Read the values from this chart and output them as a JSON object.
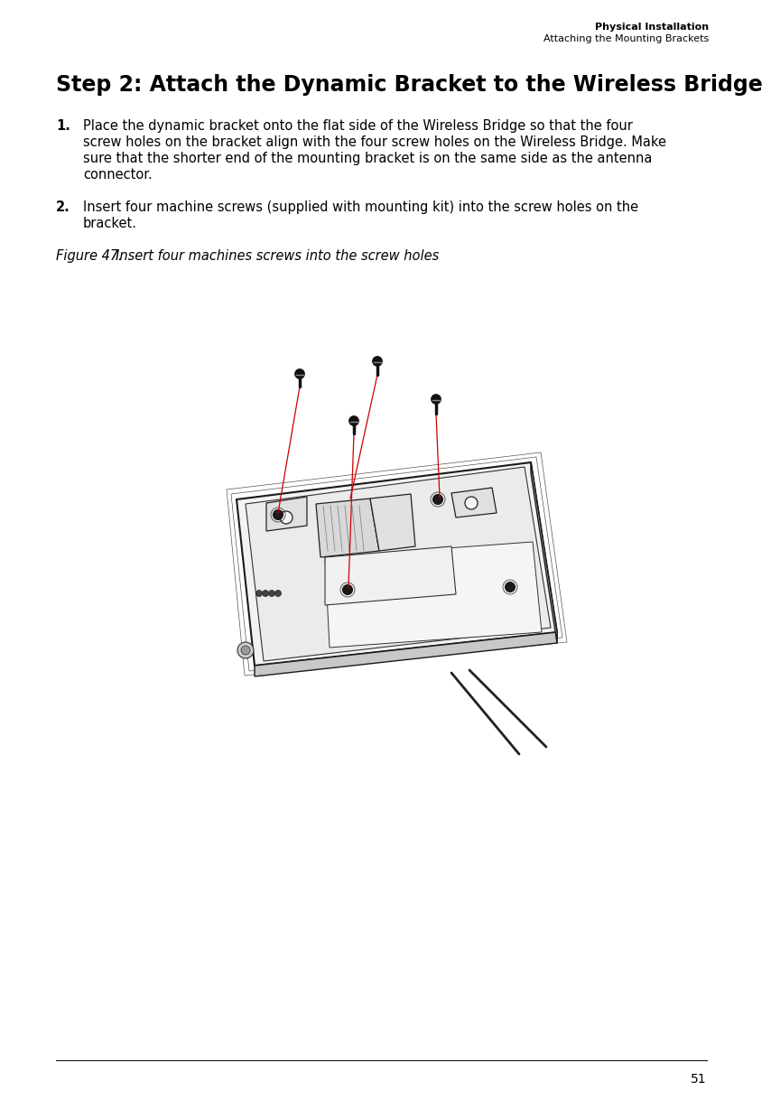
{
  "page_number": "51",
  "header_right_line1": "Physical Installation",
  "header_right_line2": "Attaching the Mounting Brackets",
  "section_title": "Step 2: Attach the Dynamic Bracket to the Wireless Bridge",
  "step1_label": "1.",
  "step1_text": "Place the dynamic bracket onto the flat side of the Wireless Bridge so that the four screw holes on the bracket align with the four screw holes on the Wireless Bridge. Make sure that the shorter end of the mounting bracket is on the same side as the antenna connector.",
  "step2_label": "2.",
  "step2_text": "Insert four machine screws (supplied with mounting kit) into the screw holes on the bracket.",
  "figure_label": "Figure 47.",
  "figure_caption": "Insert four machines screws into the screw holes",
  "bg_color": "#ffffff",
  "text_color": "#000000",
  "red_color": "#cc0000"
}
